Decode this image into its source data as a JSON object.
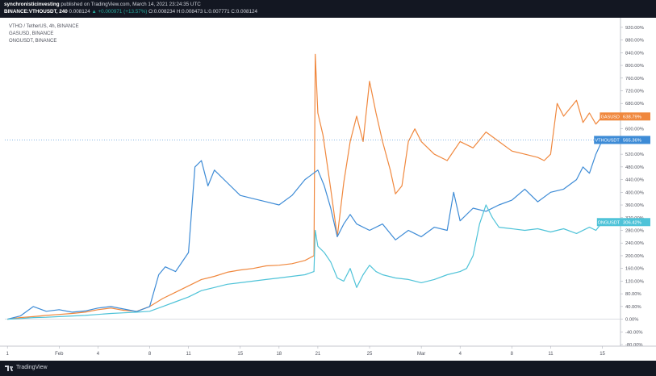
{
  "header": {
    "publisher": "synchronisticinvesting",
    "published_text": "published on TradingView.com, March 14, 2021 23:24:35 UTC",
    "symbol_line": "BINANCE:VTHOUSDT, 240",
    "price": "0.008124",
    "change": "▲ +0.000971 (+13.57%)",
    "ohlc": "O:0.008234 H:0.008473 L:0.007771 C:0.008124"
  },
  "footer": {
    "brand": "TradingView",
    "icon": "tradingview-logo-icon"
  },
  "chart_data": {
    "type": "line",
    "title": "",
    "legend": {
      "placement": "top-left",
      "entries": [
        "VTHO / TetherUS, 4h, BINANCE",
        "GASUSD, BINANCE",
        "ONGUSDT, BINANCE"
      ]
    },
    "xlabel": "",
    "ylabel": "",
    "x_tick_labels": [
      {
        "x": 0,
        "label": "1"
      },
      {
        "x": 4.0,
        "label": "Feb"
      },
      {
        "x": 7.0,
        "label": "4"
      },
      {
        "x": 11.0,
        "label": "8"
      },
      {
        "x": 14.0,
        "label": "11"
      },
      {
        "x": 18.0,
        "label": "15"
      },
      {
        "x": 21.0,
        "label": "18"
      },
      {
        "x": 24.0,
        "label": "21"
      },
      {
        "x": 28.0,
        "label": "25"
      },
      {
        "x": 32.0,
        "label": "Mar"
      },
      {
        "x": 35.0,
        "label": "4"
      },
      {
        "x": 39.0,
        "label": "8"
      },
      {
        "x": 42.0,
        "label": "11"
      },
      {
        "x": 46.0,
        "label": "15"
      }
    ],
    "xlim": [
      -0.2,
      47.4
    ],
    "y_ticks": [
      -80,
      -40,
      0,
      40,
      80,
      120,
      160,
      200,
      240,
      280,
      320,
      360,
      400,
      440,
      480,
      520,
      560,
      600,
      640,
      680,
      720,
      760,
      800,
      840,
      880,
      920
    ],
    "y_tick_labels": [
      "-80.00%",
      "-40.00%",
      "0.00%",
      "40.00%",
      "80.00%",
      "120.00%",
      "160.00%",
      "200.00%",
      "240.00%",
      "280.00%",
      "320.00%",
      "360.00%",
      "400.00%",
      "440.00%",
      "480.00%",
      "520.00%",
      "560.00%",
      "600.00%",
      "640.00%",
      "680.00%",
      "720.00%",
      "760.00%",
      "800.00%",
      "840.00%",
      "880.00%",
      "920.00%"
    ],
    "ylim": [
      -85,
      940
    ],
    "y_unit": "%",
    "log_scale": false,
    "grid": false,
    "series": [
      {
        "name": "GASUSD",
        "color": "#f0883e",
        "last_label": "638.79%",
        "x": [
          0,
          1,
          2,
          3,
          4,
          5,
          6,
          7,
          8,
          9,
          10,
          11,
          12,
          13,
          14,
          15,
          16,
          17,
          18,
          19,
          20,
          21,
          22,
          23,
          23.7,
          23.8,
          24,
          24.4,
          25,
          25.5,
          26,
          26.5,
          27,
          27.5,
          28,
          28.5,
          29,
          29.6,
          30,
          30.5,
          31,
          31.5,
          32,
          33,
          34,
          35,
          36,
          37,
          38,
          39,
          40,
          41,
          41.5,
          42,
          42.5,
          43,
          44,
          44.5,
          45,
          45.5,
          46
        ],
        "y": [
          0,
          5,
          8,
          12,
          15,
          18,
          22,
          30,
          35,
          28,
          25,
          40,
          65,
          85,
          105,
          125,
          135,
          148,
          155,
          160,
          168,
          170,
          175,
          185,
          200,
          835,
          650,
          580,
          410,
          260,
          430,
          560,
          640,
          560,
          750,
          650,
          560,
          470,
          395,
          420,
          560,
          600,
          560,
          520,
          500,
          560,
          540,
          590,
          560,
          530,
          520,
          510,
          500,
          520,
          680,
          640,
          690,
          620,
          650,
          615,
          639
        ]
      },
      {
        "name": "VTHOUSDT",
        "color": "#3d8bd6",
        "last_label": "565.36%",
        "x": [
          0,
          1,
          2,
          3,
          4,
          5,
          6,
          7,
          8,
          9,
          10,
          11,
          11.7,
          12.2,
          13,
          14,
          14.5,
          15,
          15.5,
          16,
          17,
          18,
          19,
          20,
          21,
          22,
          23,
          24,
          24.5,
          25,
          25.5,
          26,
          26.5,
          27,
          28,
          29,
          30,
          31,
          32,
          33,
          34,
          34.5,
          35,
          36,
          37,
          38,
          39,
          40,
          41,
          42,
          43,
          44,
          44.5,
          45,
          45.5,
          46
        ],
        "y": [
          0,
          10,
          40,
          25,
          30,
          22,
          26,
          35,
          40,
          32,
          24,
          40,
          140,
          165,
          150,
          210,
          480,
          500,
          420,
          470,
          430,
          390,
          380,
          370,
          360,
          390,
          440,
          470,
          420,
          350,
          260,
          300,
          330,
          300,
          280,
          300,
          250,
          280,
          260,
          290,
          280,
          400,
          310,
          350,
          340,
          360,
          375,
          410,
          370,
          400,
          410,
          440,
          480,
          460,
          520,
          565
        ]
      },
      {
        "name": "ONGUSDT",
        "color": "#4fc3d8",
        "last_label": "306.42%",
        "x": [
          0,
          1,
          2,
          3,
          4,
          5,
          6,
          7,
          8,
          9,
          10,
          11,
          12,
          13,
          14,
          15,
          16,
          17,
          18,
          19,
          20,
          21,
          22,
          23,
          23.7,
          23.8,
          24,
          24.5,
          25,
          25.5,
          26,
          26.5,
          27,
          27.5,
          28,
          28.5,
          29,
          30,
          31,
          32,
          33,
          34,
          35,
          35.5,
          36,
          36.5,
          37,
          37.5,
          38,
          39,
          40,
          41,
          42,
          43,
          44,
          45,
          45.5,
          46
        ],
        "y": [
          0,
          2,
          5,
          6,
          8,
          10,
          12,
          15,
          18,
          20,
          22,
          25,
          40,
          55,
          70,
          90,
          100,
          110,
          115,
          120,
          125,
          130,
          135,
          140,
          150,
          280,
          230,
          210,
          180,
          130,
          120,
          160,
          100,
          140,
          170,
          150,
          140,
          130,
          125,
          115,
          125,
          140,
          150,
          160,
          200,
          300,
          360,
          320,
          290,
          285,
          280,
          285,
          275,
          285,
          270,
          290,
          280,
          306
        ]
      }
    ]
  }
}
